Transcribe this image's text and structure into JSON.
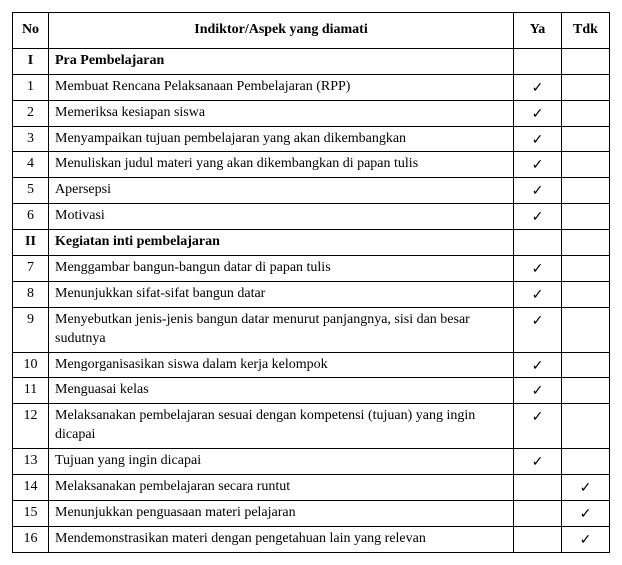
{
  "header": {
    "no": "No",
    "aspek": "Indiktor/Aspek yang diamati",
    "ya": "Ya",
    "tdk": "Tdk"
  },
  "check_mark": "✓",
  "rows": [
    {
      "type": "section",
      "no": "I",
      "text": "Pra Pembelajaran"
    },
    {
      "type": "item",
      "no": "1",
      "text": "Membuat Rencana Pelaksanaan Pembelajaran (RPP)",
      "ya": true,
      "tdk": false
    },
    {
      "type": "item",
      "no": "2",
      "text": "Memeriksa kesiapan siswa",
      "ya": true,
      "tdk": false
    },
    {
      "type": "item",
      "no": "3",
      "text": "Menyampaikan tujuan pembelajaran yang akan dikembangkan",
      "ya": true,
      "tdk": false
    },
    {
      "type": "item",
      "no": "4",
      "text": "Menuliskan judul materi yang akan dikembangkan di papan tulis",
      "ya": true,
      "tdk": false
    },
    {
      "type": "item",
      "no": "5",
      "text": "Apersepsi",
      "ya": true,
      "tdk": false
    },
    {
      "type": "item",
      "no": "6",
      "text": "Motivasi",
      "ya": true,
      "tdk": false
    },
    {
      "type": "section",
      "no": "II",
      "text": "Kegiatan inti pembelajaran"
    },
    {
      "type": "item",
      "no": "7",
      "text": "Menggambar bangun-bangun datar di papan tulis",
      "ya": true,
      "tdk": false
    },
    {
      "type": "item",
      "no": "8",
      "text": "Menunjukkan sifat-sifat bangun datar",
      "ya": true,
      "tdk": false
    },
    {
      "type": "item",
      "no": "9",
      "text": "Menyebutkan jenis-jenis bangun datar menurut panjangnya, sisi dan besar sudutnya",
      "ya": true,
      "tdk": false
    },
    {
      "type": "item",
      "no": "10",
      "text": "Mengorganisasikan siswa dalam kerja kelompok",
      "ya": true,
      "tdk": false
    },
    {
      "type": "item",
      "no": "11",
      "text": "Menguasai kelas",
      "ya": true,
      "tdk": false
    },
    {
      "type": "item",
      "no": "12",
      "text": "Melaksanakan pembelajaran sesuai dengan kompetensi (tujuan) yang ingin dicapai",
      "ya": true,
      "tdk": false
    },
    {
      "type": "item",
      "no": "13",
      "text": "Tujuan yang ingin dicapai",
      "ya": true,
      "tdk": false
    },
    {
      "type": "item",
      "no": "14",
      "text": "Melaksanakan pembelajaran secara runtut",
      "ya": false,
      "tdk": true
    },
    {
      "type": "item",
      "no": "15",
      "text": "Menunjukkan penguasaan materi pelajaran",
      "ya": false,
      "tdk": true
    },
    {
      "type": "item",
      "no": "16",
      "text": "Mendemonstrasikan materi dengan pengetahuan lain yang relevan",
      "ya": false,
      "tdk": true
    }
  ]
}
